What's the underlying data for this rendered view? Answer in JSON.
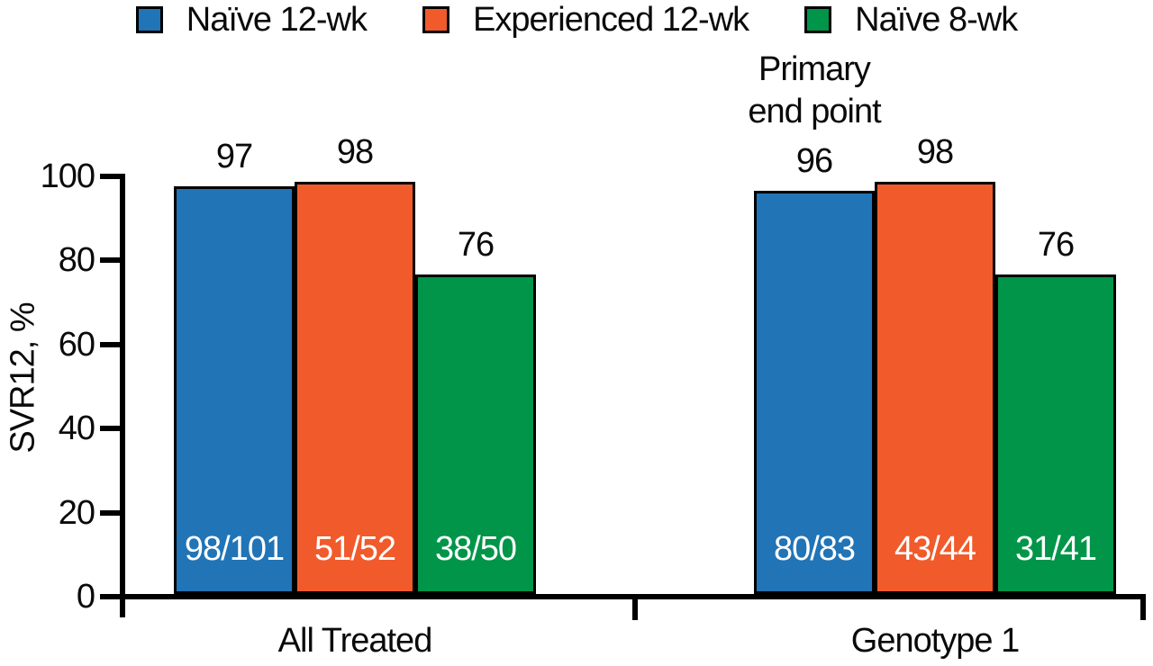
{
  "chart_data": {
    "type": "bar",
    "title": "",
    "ylabel": "SVR12, %",
    "xlabel": "",
    "ylim": [
      0,
      100
    ],
    "yticks": [
      0,
      20,
      40,
      60,
      80,
      100
    ],
    "grid": false,
    "legend_position": "top",
    "legend": [
      {
        "label": "Naïve 12-wk",
        "color": "#2174B6"
      },
      {
        "label": "Experienced 12-wk",
        "color": "#F15A2B"
      },
      {
        "label": "Naïve 8-wk",
        "color": "#009548"
      }
    ],
    "categories": [
      "All Treated",
      "Genotype 1"
    ],
    "series": [
      {
        "name": "Naïve 12-wk",
        "values": [
          97,
          96
        ],
        "fractions": [
          "98/101",
          "80/83"
        ]
      },
      {
        "name": "Experienced 12-wk",
        "values": [
          98,
          98
        ],
        "fractions": [
          "51/52",
          "43/44"
        ]
      },
      {
        "name": "Naïve 8-wk",
        "values": [
          76,
          76
        ],
        "fractions": [
          "38/50",
          "31/41"
        ]
      }
    ],
    "annotation": {
      "lines": [
        "Primary",
        "end point"
      ],
      "target": "Genotype 1 — Naïve 12-wk bar"
    },
    "colors": {
      "axis": "#000000",
      "value_label": "#0a0a0a",
      "fraction_label": "#ffffff"
    }
  }
}
